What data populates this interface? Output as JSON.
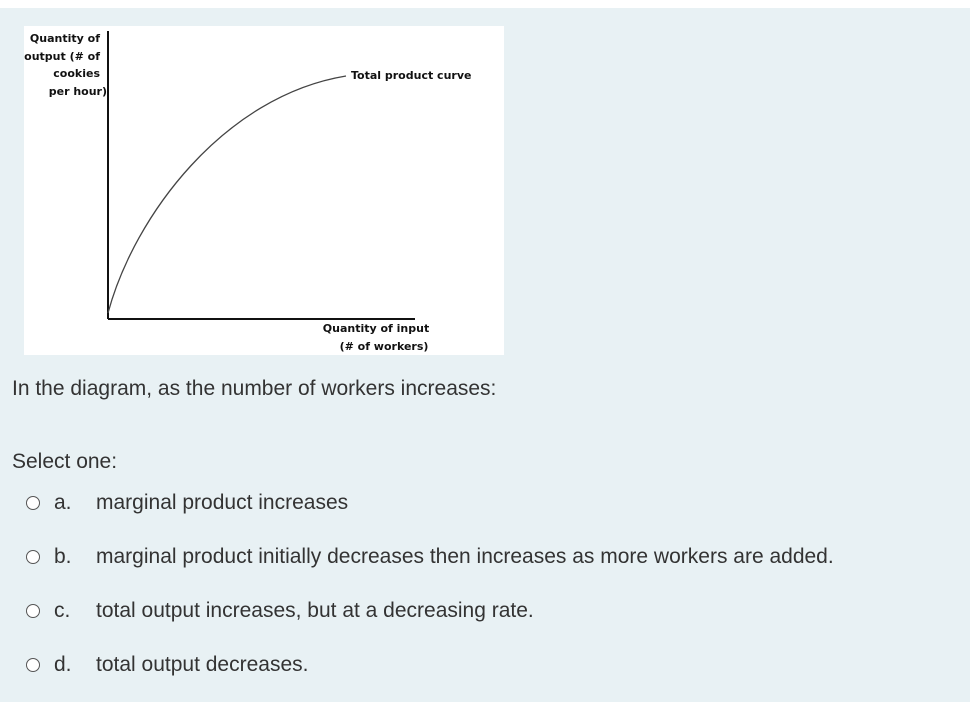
{
  "diagram": {
    "y_axis_label": [
      "Quantity of",
      "output (# of",
      "cookies",
      "per hour)"
    ],
    "curve_label": "Total product curve",
    "x_axis_label": [
      "Quantity of input",
      "(# of workers)"
    ]
  },
  "question": "In the diagram, as the number of workers increases:",
  "prompt": "Select one:",
  "options": [
    {
      "letter": "a.",
      "text": "marginal product increases"
    },
    {
      "letter": "b.",
      "text": "marginal product initially decreases then increases as more workers are added."
    },
    {
      "letter": "c.",
      "text": "total output increases, but at a decreasing rate."
    },
    {
      "letter": "d.",
      "text": "total output decreases."
    }
  ]
}
